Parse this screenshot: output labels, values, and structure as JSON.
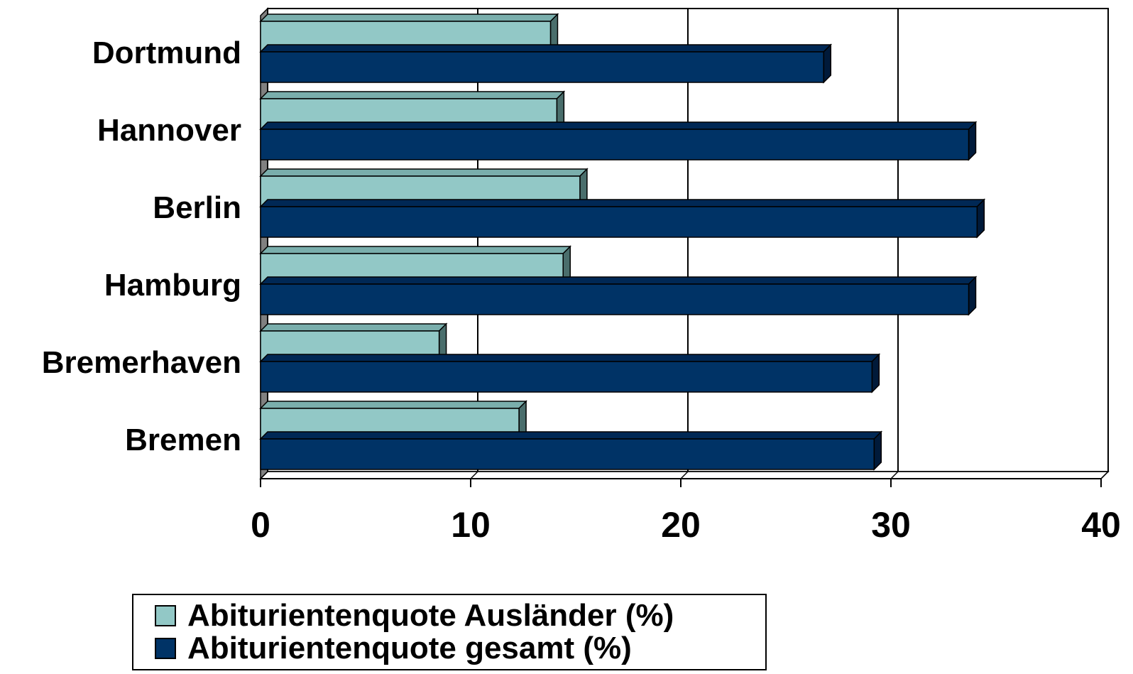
{
  "chart_data": {
    "type": "bar",
    "orientation": "horizontal",
    "categories": [
      "Dortmund",
      "Hannover",
      "Berlin",
      "Hamburg",
      "Bremerhaven",
      "Bremen"
    ],
    "series": [
      {
        "name": "Abiturientenquote Ausländer (%)",
        "values": [
          13.8,
          14.1,
          15.2,
          14.4,
          8.5,
          12.3
        ],
        "color": "#92c8c6",
        "top_color": "#7aaeac",
        "side_color": "#4a6e6c"
      },
      {
        "name": "Abiturientenquote gesamt (%)",
        "values": [
          26.8,
          33.7,
          34.1,
          33.7,
          29.1,
          29.2
        ],
        "color": "#003366",
        "top_color": "#002855",
        "side_color": "#001a3a"
      }
    ],
    "xlim": [
      0,
      40
    ],
    "xticks": [
      "0",
      "10",
      "20",
      "30",
      "40"
    ],
    "grid": true,
    "legend": "bottom",
    "title": "",
    "xlabel": "",
    "ylabel": ""
  }
}
